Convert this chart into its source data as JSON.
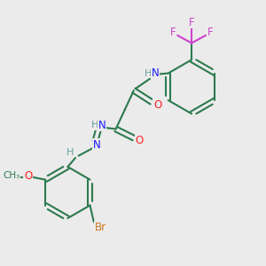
{
  "background_color": "#ebebeb",
  "atom_colors": {
    "C": "#2d7a4f",
    "H": "#6a9a9a",
    "N": "#1a1aff",
    "O": "#ff2020",
    "F": "#cc44cc",
    "Br": "#cc7722"
  },
  "bond_color": "#2d7a4f",
  "figsize": [
    3.0,
    3.0
  ],
  "dpi": 100
}
